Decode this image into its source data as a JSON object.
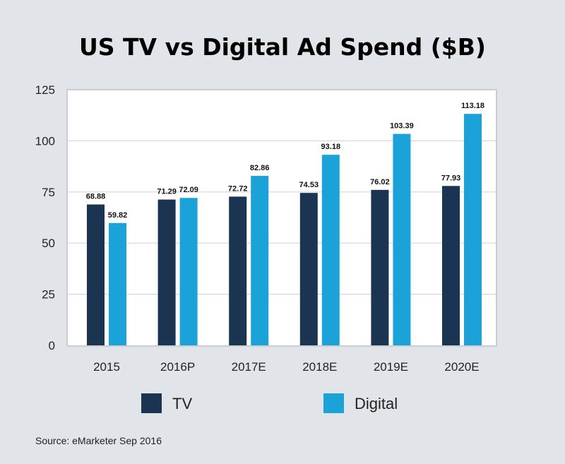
{
  "chart_data": {
    "type": "bar",
    "title": "US TV vs Digital Ad Spend ($B)",
    "categories": [
      "2015",
      "2016P",
      "2017E",
      "2018E",
      "2019E",
      "2020E"
    ],
    "series": [
      {
        "name": "TV",
        "color": "#1b3452",
        "values": [
          68.88,
          71.29,
          72.72,
          74.53,
          76.02,
          77.93
        ]
      },
      {
        "name": "Digital",
        "color": "#1ba3d9",
        "values": [
          59.82,
          72.09,
          82.86,
          93.18,
          103.39,
          113.18
        ]
      }
    ],
    "xlabel": "",
    "ylabel": "",
    "ylim": [
      0,
      125
    ],
    "yticks": [
      0,
      25,
      50,
      75,
      100,
      125
    ],
    "grid": true,
    "legend": "bottom",
    "source": "Source: eMarketer Sep 2016"
  }
}
